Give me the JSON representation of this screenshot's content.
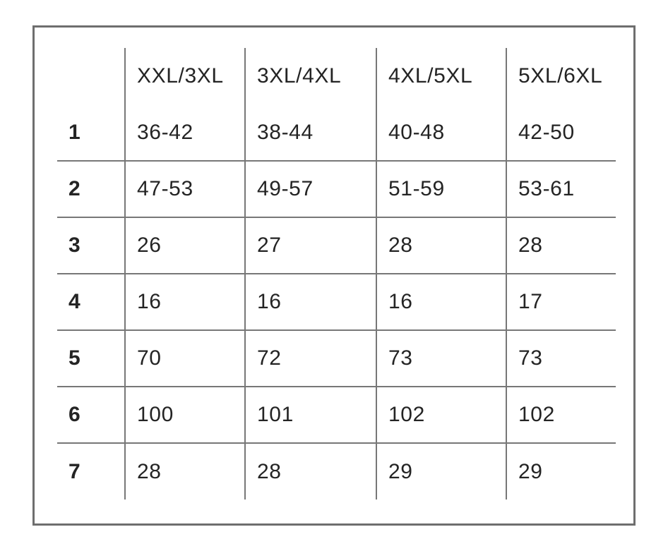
{
  "chart_data": {
    "type": "table",
    "columns": [
      "XXL/3XL",
      "3XL/4XL",
      "4XL/5XL",
      "5XL/6XL"
    ],
    "corner_label": "",
    "row_labels": [
      "1",
      "2",
      "3",
      "4",
      "5",
      "6",
      "7"
    ],
    "rows": [
      [
        "36-42",
        "38-44",
        "40-48",
        "42-50"
      ],
      [
        "47-53",
        "49-57",
        "51-59",
        "53-61"
      ],
      [
        "26",
        "27",
        "28",
        "28"
      ],
      [
        "16",
        "16",
        "16",
        "17"
      ],
      [
        "70",
        "72",
        "73",
        "73"
      ],
      [
        "100",
        "101",
        "102",
        "102"
      ],
      [
        "28",
        "28",
        "29",
        "29"
      ]
    ],
    "layout_hints": {
      "grid": "internal lines only, no outer table border",
      "header_position": "top row",
      "row_label_position": "left column, bold"
    }
  },
  "colors": {
    "background": "#ffffff",
    "frame_border": "#6e6e6e",
    "grid_line": "#777777",
    "text": "#242424"
  }
}
